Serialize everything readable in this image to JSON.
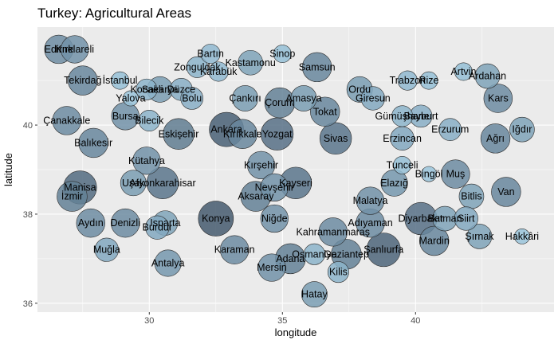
{
  "chart_data": {
    "type": "scatter",
    "title": "Turkey: Agricultural Areas",
    "xlabel": "longitude",
    "ylabel": "latitude",
    "xlim": [
      25.8,
      45.2
    ],
    "ylim": [
      35.8,
      42.2
    ],
    "xticks": [
      30,
      35,
      40
    ],
    "yticks": [
      36,
      38,
      40
    ],
    "grid": true,
    "background": "#ebebeb",
    "gridColor": "#ffffff",
    "colorLight": "#9ecae1",
    "colorDark": "#455a6f",
    "points": [
      {
        "name": "Edirne",
        "x": 26.6,
        "y": 41.7,
        "v": 0.55
      },
      {
        "name": "Kırklareli",
        "x": 27.2,
        "y": 41.7,
        "v": 0.5
      },
      {
        "name": "Tekirdağ",
        "x": 27.5,
        "y": 41.0,
        "v": 0.6
      },
      {
        "name": "İstanbul",
        "x": 28.9,
        "y": 41.0,
        "v": 0.1
      },
      {
        "name": "Kocaeli",
        "x": 29.9,
        "y": 40.8,
        "v": 0.2
      },
      {
        "name": "Sakarya",
        "x": 30.4,
        "y": 40.8,
        "v": 0.4
      },
      {
        "name": "Düzce",
        "x": 31.2,
        "y": 40.8,
        "v": 0.25
      },
      {
        "name": "Bolu",
        "x": 31.6,
        "y": 40.6,
        "v": 0.25
      },
      {
        "name": "Yalova",
        "x": 29.3,
        "y": 40.6,
        "v": 0.05
      },
      {
        "name": "Bursa",
        "x": 29.1,
        "y": 40.2,
        "v": 0.5
      },
      {
        "name": "Bilecik",
        "x": 30.0,
        "y": 40.1,
        "v": 0.2
      },
      {
        "name": "Çanakkale",
        "x": 26.9,
        "y": 40.1,
        "v": 0.55
      },
      {
        "name": "Balıkesir",
        "x": 27.9,
        "y": 39.6,
        "v": 0.6
      },
      {
        "name": "Kütahya",
        "x": 29.9,
        "y": 39.2,
        "v": 0.5
      },
      {
        "name": "Eskişehir",
        "x": 31.1,
        "y": 39.8,
        "v": 0.7
      },
      {
        "name": "Bartın",
        "x": 32.3,
        "y": 41.6,
        "v": 0.15
      },
      {
        "name": "Zonguldak",
        "x": 31.8,
        "y": 41.3,
        "v": 0.2
      },
      {
        "name": "Karabük",
        "x": 32.6,
        "y": 41.2,
        "v": 0.15
      },
      {
        "name": "Kastamonu",
        "x": 33.8,
        "y": 41.4,
        "v": 0.35
      },
      {
        "name": "Sinop",
        "x": 35.0,
        "y": 41.6,
        "v": 0.1
      },
      {
        "name": "Samsun",
        "x": 36.3,
        "y": 41.3,
        "v": 0.6
      },
      {
        "name": "Çankırı",
        "x": 33.6,
        "y": 40.6,
        "v": 0.4
      },
      {
        "name": "Çorum",
        "x": 34.9,
        "y": 40.5,
        "v": 0.65
      },
      {
        "name": "Amasya",
        "x": 35.8,
        "y": 40.6,
        "v": 0.4
      },
      {
        "name": "Tokat",
        "x": 36.6,
        "y": 40.3,
        "v": 0.6
      },
      {
        "name": "Ordu",
        "x": 37.9,
        "y": 40.8,
        "v": 0.4
      },
      {
        "name": "Giresun",
        "x": 38.4,
        "y": 40.6,
        "v": 0.3
      },
      {
        "name": "Trabzon",
        "x": 39.7,
        "y": 41.0,
        "v": 0.15
      },
      {
        "name": "Rize",
        "x": 40.5,
        "y": 41.0,
        "v": 0.1
      },
      {
        "name": "Artvin",
        "x": 41.8,
        "y": 41.2,
        "v": 0.1
      },
      {
        "name": "Ardahan",
        "x": 42.7,
        "y": 41.1,
        "v": 0.35
      },
      {
        "name": "Kars",
        "x": 43.1,
        "y": 40.6,
        "v": 0.55
      },
      {
        "name": "Gümüşhane",
        "x": 39.5,
        "y": 40.2,
        "v": 0.2
      },
      {
        "name": "Bayburt",
        "x": 40.2,
        "y": 40.2,
        "v": 0.25
      },
      {
        "name": "Erzurum",
        "x": 41.3,
        "y": 39.9,
        "v": 0.25
      },
      {
        "name": "Erzincan",
        "x": 39.5,
        "y": 39.7,
        "v": 0.3
      },
      {
        "name": "Ağrı",
        "x": 43.0,
        "y": 39.7,
        "v": 0.6
      },
      {
        "name": "Iğdır",
        "x": 44.0,
        "y": 39.9,
        "v": 0.35
      },
      {
        "name": "Ankara",
        "x": 32.9,
        "y": 39.9,
        "v": 0.95
      },
      {
        "name": "Kırıkkale",
        "x": 33.5,
        "y": 39.8,
        "v": 0.6
      },
      {
        "name": "Yozgat",
        "x": 34.8,
        "y": 39.8,
        "v": 0.8
      },
      {
        "name": "Sivas",
        "x": 37.0,
        "y": 39.7,
        "v": 0.75
      },
      {
        "name": "Kırşehir",
        "x": 34.2,
        "y": 39.1,
        "v": 0.5
      },
      {
        "name": "Nevşehir",
        "x": 34.7,
        "y": 38.6,
        "v": 0.5
      },
      {
        "name": "Kayseri",
        "x": 35.5,
        "y": 38.7,
        "v": 0.75
      },
      {
        "name": "Aksaray",
        "x": 34.0,
        "y": 38.4,
        "v": 0.65
      },
      {
        "name": "Niğde",
        "x": 34.7,
        "y": 37.9,
        "v": 0.5
      },
      {
        "name": "Tunceli",
        "x": 39.5,
        "y": 39.1,
        "v": 0.1
      },
      {
        "name": "Bingöl",
        "x": 40.5,
        "y": 38.9,
        "v": 0.05
      },
      {
        "name": "Muş",
        "x": 41.5,
        "y": 38.9,
        "v": 0.55
      },
      {
        "name": "Elazığ",
        "x": 39.2,
        "y": 38.7,
        "v": 0.45
      },
      {
        "name": "Bitlis",
        "x": 42.1,
        "y": 38.4,
        "v": 0.35
      },
      {
        "name": "Malatya",
        "x": 38.3,
        "y": 38.3,
        "v": 0.5
      },
      {
        "name": "Van",
        "x": 43.4,
        "y": 38.5,
        "v": 0.6
      },
      {
        "name": "Manisa",
        "x": 27.4,
        "y": 38.6,
        "v": 0.85
      },
      {
        "name": "İzmir",
        "x": 27.1,
        "y": 38.4,
        "v": 0.65
      },
      {
        "name": "Uşak",
        "x": 29.4,
        "y": 38.7,
        "v": 0.4
      },
      {
        "name": "Afyonkarahisar",
        "x": 30.5,
        "y": 38.7,
        "v": 0.75
      },
      {
        "name": "Aydın",
        "x": 27.8,
        "y": 37.8,
        "v": 0.55
      },
      {
        "name": "Denizli",
        "x": 29.1,
        "y": 37.8,
        "v": 0.55
      },
      {
        "name": "Isparta",
        "x": 30.6,
        "y": 37.8,
        "v": 0.35
      },
      {
        "name": "Konya",
        "x": 32.5,
        "y": 37.9,
        "v": 1.0
      },
      {
        "name": "Burdur",
        "x": 30.3,
        "y": 37.7,
        "v": 0.3
      },
      {
        "name": "Muğla",
        "x": 28.4,
        "y": 37.2,
        "v": 0.3
      },
      {
        "name": "Antalya",
        "x": 30.7,
        "y": 36.9,
        "v": 0.45
      },
      {
        "name": "Karaman",
        "x": 33.2,
        "y": 37.2,
        "v": 0.55
      },
      {
        "name": "Kahramanmaraş",
        "x": 36.9,
        "y": 37.6,
        "v": 0.55
      },
      {
        "name": "Adıyaman",
        "x": 38.3,
        "y": 37.8,
        "v": 0.55
      },
      {
        "name": "Osmaniye",
        "x": 36.2,
        "y": 37.1,
        "v": 0.2
      },
      {
        "name": "Gaziantep",
        "x": 37.4,
        "y": 37.1,
        "v": 0.65
      },
      {
        "name": "Adana",
        "x": 35.3,
        "y": 37.0,
        "v": 0.65
      },
      {
        "name": "Mersin",
        "x": 34.6,
        "y": 36.8,
        "v": 0.5
      },
      {
        "name": "Kilis",
        "x": 37.1,
        "y": 36.7,
        "v": 0.2
      },
      {
        "name": "Şanlıurfa",
        "x": 38.8,
        "y": 37.2,
        "v": 0.9
      },
      {
        "name": "Diyarbakır",
        "x": 40.2,
        "y": 37.9,
        "v": 0.8
      },
      {
        "name": "Batman",
        "x": 41.1,
        "y": 37.9,
        "v": 0.35
      },
      {
        "name": "Siirt",
        "x": 41.9,
        "y": 37.9,
        "v": 0.3
      },
      {
        "name": "Mardin",
        "x": 40.7,
        "y": 37.4,
        "v": 0.6
      },
      {
        "name": "Şırnak",
        "x": 42.4,
        "y": 37.5,
        "v": 0.35
      },
      {
        "name": "Hakkâri",
        "x": 44.0,
        "y": 37.5,
        "v": 0.05
      },
      {
        "name": "Hatay",
        "x": 36.2,
        "y": 36.2,
        "v": 0.4
      }
    ]
  }
}
